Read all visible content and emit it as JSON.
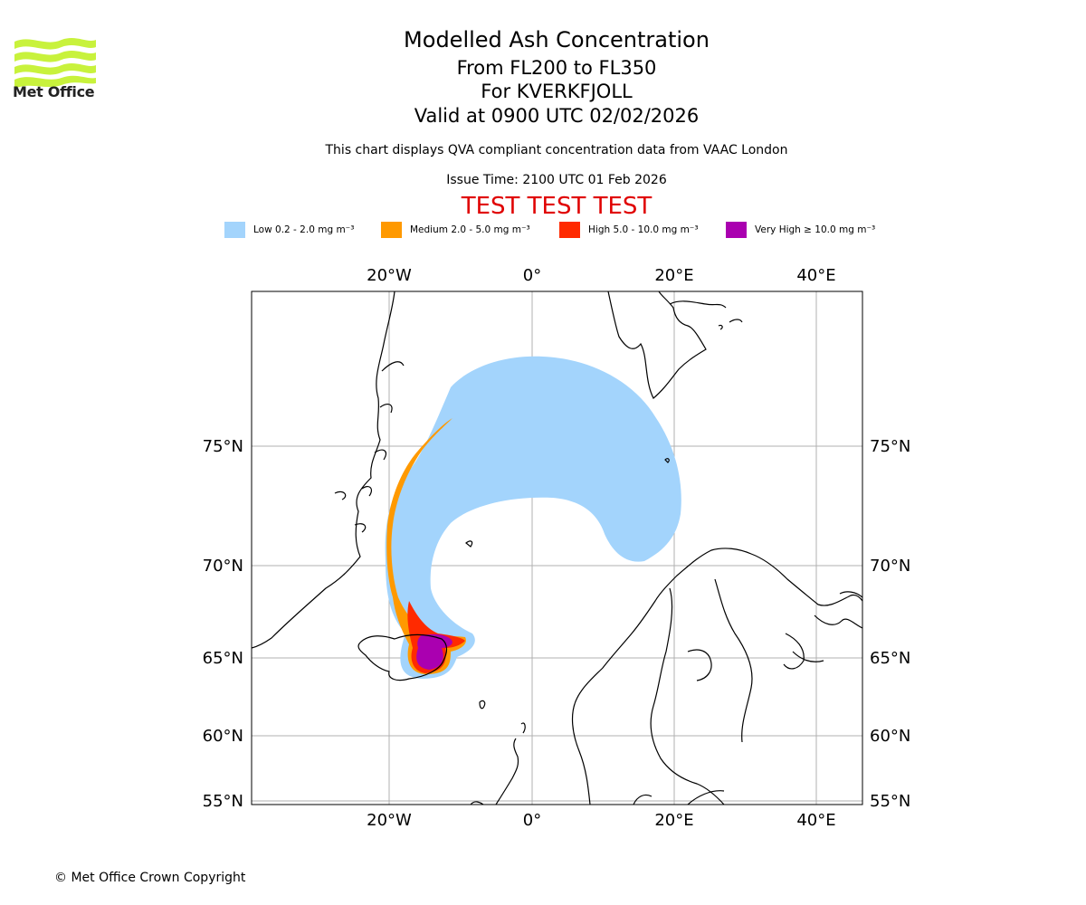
{
  "header": {
    "title": "Modelled Ash Concentration",
    "level_range": "From FL200 to FL350",
    "volcano": "For KVERKFJOLL",
    "valid_time": "Valid at 0900 UTC 02/02/2026",
    "description": "This chart displays QVA compliant concentration data from VAAC London",
    "issue_time": "Issue Time: 2100 UTC 01 Feb 2026",
    "test_banner": "TEST TEST TEST"
  },
  "legend": {
    "items": [
      {
        "label": "Low 0.2 - 2.0 mg m⁻³",
        "color": "#a3d4fc"
      },
      {
        "label": "Medium 2.0 - 5.0 mg m⁻³",
        "color": "#ff9900"
      },
      {
        "label": "High 5.0 - 10.0 mg m⁻³",
        "color": "#ff2a00"
      },
      {
        "label": "Very High  ≥  10.0 mg m⁻³",
        "color": "#aa00b0"
      }
    ]
  },
  "map": {
    "lon_labels": [
      "20°W",
      "0°",
      "20°E",
      "40°E"
    ],
    "lat_labels": [
      "75°N",
      "70°N",
      "65°N",
      "60°N",
      "55°N"
    ],
    "coast_color": "#000000",
    "grid_color": "#b0b0b0"
  },
  "branding": {
    "logo_text": "Met Office",
    "logo_color": "#c8f23c",
    "copyright": "© Met Office Crown Copyright"
  }
}
